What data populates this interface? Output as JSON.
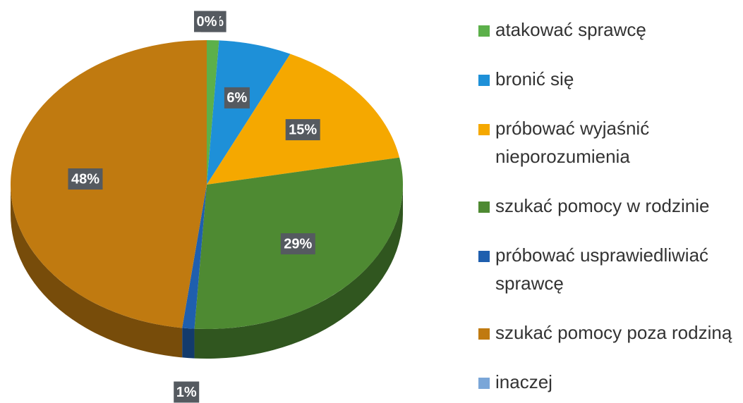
{
  "chart_data": {
    "type": "pie",
    "categories": [
      "atakować sprawcę",
      "bronić się",
      "próbować wyjaśnić nieporozumienia",
      "szukać pomocy w rodzinie",
      "próbować usprawiedliwiać sprawcę",
      "szukać pomocy poza rodziną",
      "inaczej"
    ],
    "values": [
      1,
      6,
      15,
      29,
      1,
      48,
      0
    ],
    "value_labels": [
      "1%",
      "6%",
      "15%",
      "29%",
      "1%",
      "48%",
      "0%"
    ],
    "colors": [
      "#5cb04a",
      "#1e90d8",
      "#f5a800",
      "#4e8a32",
      "#1f5fae",
      "#c07a10",
      "#7aa6d8"
    ],
    "legend": "right"
  }
}
